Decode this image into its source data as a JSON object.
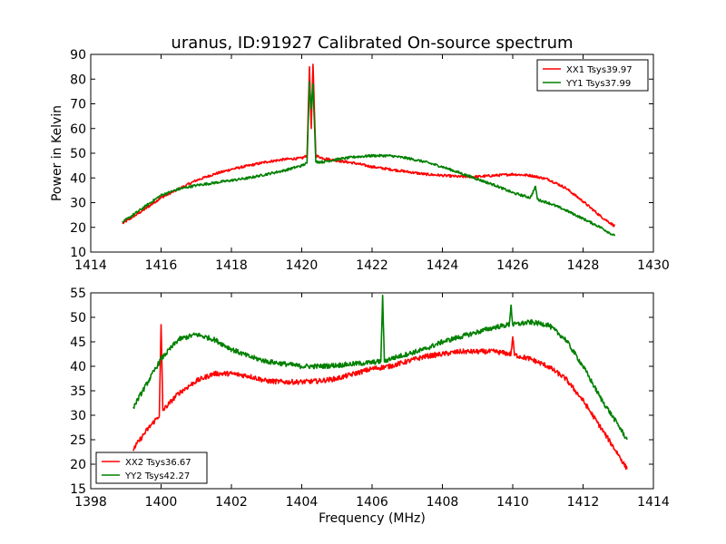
{
  "figure": {
    "title": "uranus, ID:91927 Calibrated On-source spectrum",
    "xlabel": "Frequency (MHz)"
  },
  "colors": {
    "red": "#ff0000",
    "green": "#008000"
  },
  "chart_data": [
    {
      "type": "line",
      "title": "uranus, ID:91927 Calibrated On-source spectrum",
      "xlabel": "",
      "ylabel": "Power in Kelvin",
      "xlim": [
        1414,
        1430
      ],
      "ylim": [
        10,
        90
      ],
      "xticks": [
        "1414",
        "1416",
        "1418",
        "1420",
        "1422",
        "1424",
        "1426",
        "1428",
        "1430"
      ],
      "yticks": [
        "10",
        "20",
        "30",
        "40",
        "50",
        "60",
        "70",
        "80",
        "90"
      ],
      "grid": false,
      "legend_position": "top-right",
      "series": [
        {
          "name": "XX1 Tsys39.97",
          "color": "#ff0000",
          "x": [
            1414.9,
            1415.5,
            1416.0,
            1416.5,
            1417.0,
            1417.5,
            1418.0,
            1418.5,
            1419.0,
            1419.5,
            1420.0,
            1420.15,
            1420.22,
            1420.27,
            1420.32,
            1420.4,
            1420.6,
            1421.0,
            1421.5,
            1422.0,
            1422.5,
            1423.0,
            1423.5,
            1424.0,
            1424.5,
            1425.0,
            1425.5,
            1426.0,
            1426.5,
            1427.0,
            1427.5,
            1428.0,
            1428.5,
            1428.9
          ],
          "y": [
            21.5,
            27.0,
            32.0,
            35.5,
            39.0,
            41.5,
            43.5,
            45.0,
            46.5,
            47.5,
            48.0,
            49.0,
            85.0,
            60.0,
            86.0,
            49.0,
            48.0,
            47.0,
            46.0,
            44.5,
            43.5,
            42.5,
            41.5,
            41.0,
            40.5,
            40.5,
            41.0,
            41.5,
            41.0,
            39.5,
            36.0,
            30.5,
            24.5,
            20.5
          ]
        },
        {
          "name": "YY1 Tsys37.99",
          "color": "#008000",
          "x": [
            1414.9,
            1415.5,
            1416.0,
            1416.5,
            1417.0,
            1417.5,
            1418.0,
            1418.5,
            1419.0,
            1419.5,
            1420.0,
            1420.15,
            1420.22,
            1420.27,
            1420.32,
            1420.4,
            1420.6,
            1421.0,
            1421.5,
            1422.0,
            1422.5,
            1423.0,
            1423.5,
            1424.0,
            1424.5,
            1425.0,
            1425.5,
            1426.0,
            1426.5,
            1426.65,
            1426.7,
            1426.75,
            1427.0,
            1427.5,
            1428.0,
            1428.5,
            1428.9
          ],
          "y": [
            22.0,
            28.0,
            33.0,
            35.5,
            37.0,
            38.0,
            39.0,
            40.0,
            41.5,
            43.0,
            45.0,
            46.0,
            79.0,
            68.0,
            78.0,
            46.5,
            46.5,
            47.5,
            48.5,
            49.0,
            49.0,
            48.0,
            46.5,
            44.5,
            42.0,
            39.5,
            37.0,
            34.0,
            32.0,
            36.5,
            31.5,
            31.0,
            30.0,
            27.0,
            23.5,
            20.0,
            16.5
          ]
        }
      ]
    },
    {
      "type": "line",
      "title": "",
      "xlabel": "Frequency (MHz)",
      "ylabel": "",
      "xlim": [
        1398,
        1414
      ],
      "ylim": [
        15,
        55
      ],
      "xticks": [
        "1398",
        "1400",
        "1402",
        "1404",
        "1406",
        "1408",
        "1410",
        "1412",
        "1414"
      ],
      "yticks": [
        "15",
        "20",
        "25",
        "30",
        "35",
        "40",
        "45",
        "50",
        "55"
      ],
      "grid": false,
      "legend_position": "bottom-left",
      "series": [
        {
          "name": "XX2 Tsys36.67",
          "color": "#ff0000",
          "x": [
            1399.2,
            1399.6,
            1399.95,
            1400.0,
            1400.05,
            1400.5,
            1401.0,
            1401.5,
            1402.0,
            1402.5,
            1403.0,
            1403.5,
            1404.0,
            1404.5,
            1405.0,
            1405.5,
            1406.0,
            1406.5,
            1407.0,
            1407.5,
            1408.0,
            1408.5,
            1409.0,
            1409.5,
            1409.95,
            1410.0,
            1410.05,
            1410.5,
            1411.0,
            1411.5,
            1412.0,
            1412.5,
            1413.0,
            1413.25
          ],
          "y": [
            23.0,
            27.0,
            30.0,
            48.5,
            31.0,
            34.5,
            37.0,
            38.5,
            38.5,
            38.0,
            37.0,
            36.8,
            36.8,
            37.0,
            37.5,
            38.5,
            39.5,
            40.0,
            41.0,
            42.0,
            42.5,
            43.0,
            43.0,
            43.0,
            42.5,
            46.0,
            42.3,
            41.5,
            40.0,
            37.5,
            33.0,
            27.5,
            22.0,
            19.0
          ]
        },
        {
          "name": "YY2 Tsys42.27",
          "color": "#008000",
          "x": [
            1399.2,
            1399.6,
            1400.0,
            1400.5,
            1401.0,
            1401.5,
            1402.0,
            1402.5,
            1403.0,
            1403.5,
            1404.0,
            1404.5,
            1405.0,
            1405.5,
            1406.0,
            1406.25,
            1406.3,
            1406.35,
            1406.5,
            1407.0,
            1407.5,
            1408.0,
            1408.5,
            1409.0,
            1409.5,
            1409.9,
            1409.95,
            1410.0,
            1410.5,
            1411.0,
            1411.5,
            1412.0,
            1412.5,
            1413.0,
            1413.25
          ],
          "y": [
            31.5,
            36.5,
            41.5,
            45.5,
            46.5,
            45.5,
            43.5,
            42.0,
            41.0,
            40.5,
            40.0,
            40.0,
            40.2,
            40.5,
            40.8,
            41.0,
            54.5,
            41.0,
            41.5,
            42.5,
            43.5,
            45.0,
            46.0,
            47.0,
            48.0,
            48.5,
            52.5,
            48.5,
            49.0,
            48.5,
            45.5,
            40.0,
            33.5,
            28.0,
            25.0
          ]
        }
      ]
    }
  ]
}
